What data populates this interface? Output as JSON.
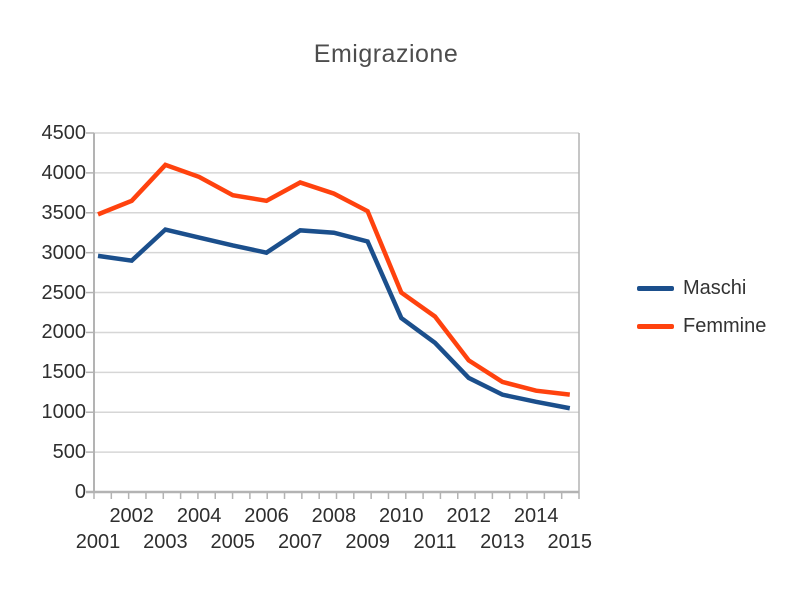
{
  "colors": {
    "maschi": "#1B4F8C",
    "femmine": "#FF420E",
    "grid": "#D6D6D6",
    "axis": "#B3B3B3"
  },
  "legend": {
    "items": [
      {
        "label": "Maschi",
        "color": "#1B4F8C"
      },
      {
        "label": "Femmine",
        "color": "#FF420E"
      }
    ]
  },
  "chart_data": {
    "type": "line",
    "title": "Emigrazione",
    "x": [
      "2001",
      "2002",
      "2003",
      "2004",
      "2005",
      "2006",
      "2007",
      "2008",
      "2009",
      "2010",
      "2011",
      "2012",
      "2013",
      "2014",
      "2015"
    ],
    "series": [
      {
        "name": "Maschi",
        "color": "#1B4F8C",
        "values": [
          2960,
          2900,
          3290,
          3190,
          3090,
          3000,
          3280,
          3250,
          3140,
          2180,
          1870,
          1430,
          1220,
          1130,
          1050
        ]
      },
      {
        "name": "Femmine",
        "color": "#FF420E",
        "values": [
          3480,
          3650,
          4100,
          3950,
          3720,
          3650,
          3880,
          3740,
          3520,
          2500,
          2200,
          1650,
          1380,
          1270,
          1220
        ]
      }
    ],
    "xlabel": "",
    "ylabel": "",
    "ylim": [
      0,
      4500
    ],
    "ytick_step": 500,
    "grid": "horizontal",
    "legend_position": "right"
  }
}
